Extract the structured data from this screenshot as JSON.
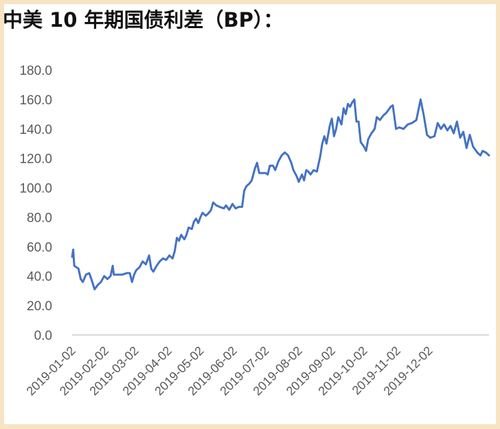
{
  "colors": {
    "background": "#f6e4c4",
    "line": "#4472c4",
    "axis": "#d9d9d9",
    "text": "#595959"
  },
  "chart_data": {
    "type": "line",
    "title": "中美 10 年期国债利差（BP）：",
    "xlabel": "",
    "ylabel": "",
    "ylim": [
      0,
      180
    ],
    "y_ticks": [
      "0.0",
      "20.0",
      "40.0",
      "60.0",
      "80.0",
      "100.0",
      "120.0",
      "140.0",
      "160.0",
      "180.0"
    ],
    "x_ticks": [
      "2019-01-02",
      "2019-02-02",
      "2019-03-02",
      "2019-04-02",
      "2019-05-02",
      "2019-06-02",
      "2019-07-02",
      "2019-08-02",
      "2019-09-02",
      "2019-10-02",
      "2019-11-02",
      "2019-12-02"
    ],
    "grid": false,
    "legend": "none",
    "series": [
      {
        "values": [
          [
            "2019-01-02",
            53
          ],
          [
            "2019-01-03",
            58
          ],
          [
            "2019-01-04",
            47
          ],
          [
            "2019-01-08",
            45
          ],
          [
            "2019-01-10",
            38
          ],
          [
            "2019-01-12",
            36
          ],
          [
            "2019-01-15",
            41
          ],
          [
            "2019-01-18",
            42
          ],
          [
            "2019-01-20",
            38
          ],
          [
            "2019-01-23",
            31
          ],
          [
            "2019-01-26",
            34
          ],
          [
            "2019-01-29",
            36
          ],
          [
            "2019-02-01",
            40
          ],
          [
            "2019-02-04",
            38
          ],
          [
            "2019-02-07",
            40
          ],
          [
            "2019-02-09",
            47
          ],
          [
            "2019-02-10",
            41
          ],
          [
            "2019-02-14",
            41
          ],
          [
            "2019-02-18",
            41
          ],
          [
            "2019-02-22",
            42
          ],
          [
            "2019-02-25",
            42
          ],
          [
            "2019-02-27",
            36
          ],
          [
            "2019-03-01",
            41
          ],
          [
            "2019-03-03",
            44
          ],
          [
            "2019-03-06",
            46
          ],
          [
            "2019-03-09",
            50
          ],
          [
            "2019-03-12",
            48
          ],
          [
            "2019-03-15",
            54
          ],
          [
            "2019-03-17",
            45
          ],
          [
            "2019-03-19",
            43
          ],
          [
            "2019-03-22",
            47
          ],
          [
            "2019-03-25",
            50
          ],
          [
            "2019-03-28",
            52
          ],
          [
            "2019-03-31",
            51
          ],
          [
            "2019-04-03",
            54
          ],
          [
            "2019-04-06",
            52
          ],
          [
            "2019-04-08",
            57
          ],
          [
            "2019-04-10",
            66
          ],
          [
            "2019-04-12",
            64
          ],
          [
            "2019-04-14",
            68
          ],
          [
            "2019-04-17",
            65
          ],
          [
            "2019-04-19",
            68
          ],
          [
            "2019-04-21",
            73
          ],
          [
            "2019-04-24",
            72
          ],
          [
            "2019-04-26",
            77
          ],
          [
            "2019-04-28",
            79
          ],
          [
            "2019-04-30",
            76
          ],
          [
            "2019-05-02",
            80
          ],
          [
            "2019-05-04",
            83
          ],
          [
            "2019-05-07",
            81
          ],
          [
            "2019-05-10",
            83
          ],
          [
            "2019-05-12",
            85
          ],
          [
            "2019-05-14",
            90
          ],
          [
            "2019-05-17",
            88
          ],
          [
            "2019-05-20",
            87
          ],
          [
            "2019-05-24",
            86
          ],
          [
            "2019-05-26",
            88
          ],
          [
            "2019-05-29",
            85
          ],
          [
            "2019-06-01",
            89
          ],
          [
            "2019-06-04",
            86
          ],
          [
            "2019-06-07",
            87
          ],
          [
            "2019-06-10",
            87
          ],
          [
            "2019-06-12",
            98
          ],
          [
            "2019-06-14",
            101
          ],
          [
            "2019-06-17",
            103
          ],
          [
            "2019-06-19",
            105
          ],
          [
            "2019-06-22",
            113
          ],
          [
            "2019-06-24",
            117
          ],
          [
            "2019-06-26",
            110
          ],
          [
            "2019-06-29",
            110
          ],
          [
            "2019-07-02",
            110
          ],
          [
            "2019-07-04",
            109
          ],
          [
            "2019-07-06",
            115
          ],
          [
            "2019-07-09",
            115
          ],
          [
            "2019-07-11",
            112
          ],
          [
            "2019-07-14",
            118
          ],
          [
            "2019-07-17",
            122
          ],
          [
            "2019-07-20",
            124
          ],
          [
            "2019-07-23",
            122
          ],
          [
            "2019-07-26",
            117
          ],
          [
            "2019-07-28",
            112
          ],
          [
            "2019-07-31",
            108
          ],
          [
            "2019-08-02",
            104
          ],
          [
            "2019-08-05",
            109
          ],
          [
            "2019-08-07",
            105
          ],
          [
            "2019-08-09",
            112
          ],
          [
            "2019-08-11",
            111
          ],
          [
            "2019-08-13",
            109
          ],
          [
            "2019-08-16",
            112
          ],
          [
            "2019-08-19",
            111
          ],
          [
            "2019-08-22",
            121
          ],
          [
            "2019-08-24",
            130
          ],
          [
            "2019-08-26",
            135
          ],
          [
            "2019-08-28",
            130
          ],
          [
            "2019-08-31",
            142
          ],
          [
            "2019-09-02",
            147
          ],
          [
            "2019-09-04",
            135
          ],
          [
            "2019-09-06",
            140
          ],
          [
            "2019-09-08",
            148
          ],
          [
            "2019-09-11",
            143
          ],
          [
            "2019-09-13",
            154
          ],
          [
            "2019-09-15",
            150
          ],
          [
            "2019-09-17",
            157
          ],
          [
            "2019-09-19",
            155
          ],
          [
            "2019-09-21",
            158
          ],
          [
            "2019-09-23",
            160
          ],
          [
            "2019-09-25",
            145
          ],
          [
            "2019-09-27",
            145
          ],
          [
            "2019-09-29",
            131
          ],
          [
            "2019-10-02",
            128
          ],
          [
            "2019-10-04",
            125
          ],
          [
            "2019-10-06",
            133
          ],
          [
            "2019-10-09",
            137
          ],
          [
            "2019-10-12",
            140
          ],
          [
            "2019-10-14",
            148
          ],
          [
            "2019-10-17",
            146
          ],
          [
            "2019-10-20",
            149
          ],
          [
            "2019-10-23",
            151
          ],
          [
            "2019-10-27",
            155
          ],
          [
            "2019-10-29",
            156
          ],
          [
            "2019-11-01",
            140
          ],
          [
            "2019-11-04",
            141
          ],
          [
            "2019-11-08",
            140
          ],
          [
            "2019-11-12",
            143
          ],
          [
            "2019-11-16",
            144
          ],
          [
            "2019-11-20",
            146
          ],
          [
            "2019-11-24",
            160
          ],
          [
            "2019-11-27",
            149
          ],
          [
            "2019-11-30",
            136
          ],
          [
            "2019-12-03",
            134
          ],
          [
            "2019-12-07",
            135
          ],
          [
            "2019-12-10",
            144
          ],
          [
            "2019-12-13",
            140
          ],
          [
            "2019-12-16",
            143
          ],
          [
            "2019-12-19",
            139
          ],
          [
            "2019-12-22",
            142
          ],
          [
            "2019-12-25",
            137
          ],
          [
            "2019-12-28",
            145
          ],
          [
            "2019-12-31",
            134
          ],
          [
            "2020-01-03",
            138
          ],
          [
            "2020-01-06",
            127
          ],
          [
            "2020-01-09",
            136
          ],
          [
            "2020-01-12",
            128
          ],
          [
            "2020-01-16",
            124
          ],
          [
            "2020-01-19",
            122
          ],
          [
            "2020-01-21",
            125
          ],
          [
            "2020-01-24",
            124
          ],
          [
            "2020-01-27",
            122
          ]
        ]
      }
    ]
  }
}
